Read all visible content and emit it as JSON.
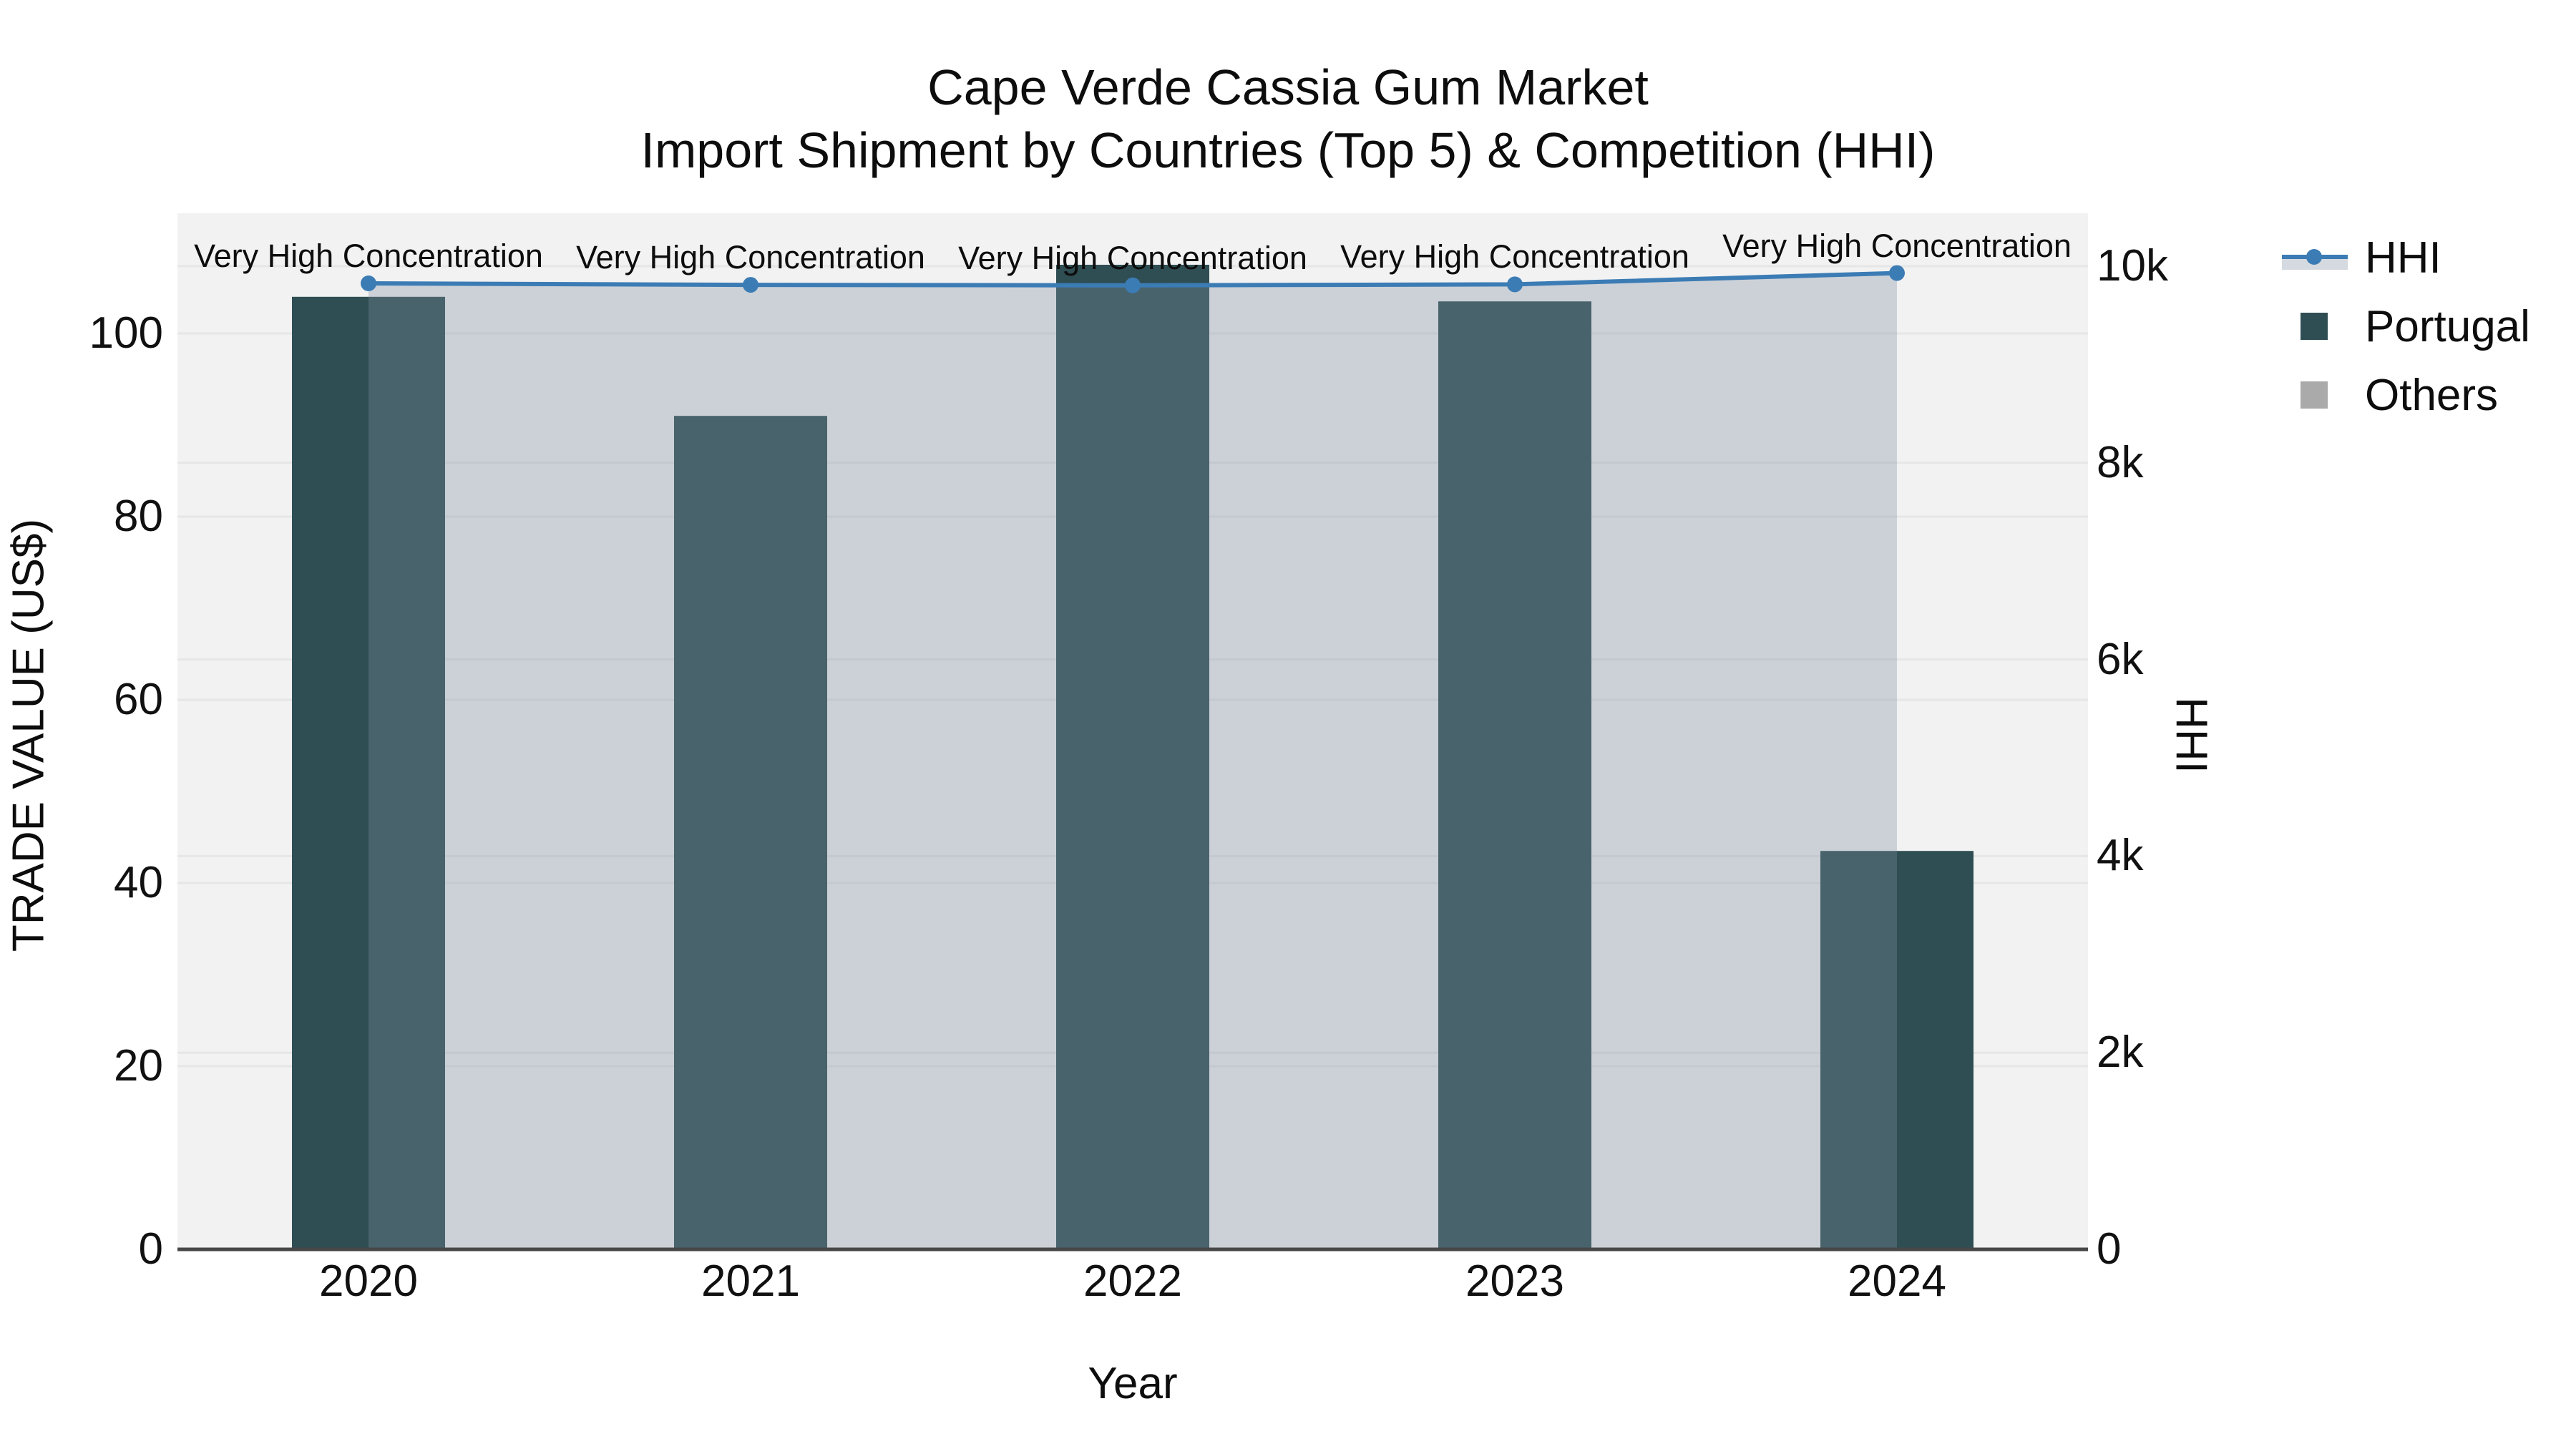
{
  "title": {
    "line1": "Cape Verde Cassia Gum Market",
    "line2": "Import Shipment by Countries (Top 5) & Competition (HHI)"
  },
  "axes": {
    "x": {
      "title": "Year"
    },
    "y_left": {
      "title": "TRADE VALUE (US$)"
    },
    "y_right": {
      "title": "HHI"
    }
  },
  "legend": {
    "items": [
      {
        "label": "HHI",
        "type": "line"
      },
      {
        "label": "Portugal",
        "type": "bar"
      },
      {
        "label": "Others",
        "type": "bar"
      }
    ]
  },
  "colors": {
    "portugal_bar": "#2F4E53",
    "others_bar": "#AAAAAA",
    "hhi_line": "#3C7CB5",
    "hhi_fill": "rgba(127,142,161,0.33)",
    "plot_bg": "#F2F2F2",
    "grid": "#E6E6E6",
    "axis_line": "#474747"
  },
  "chart_data": {
    "type": [
      "bar",
      "line"
    ],
    "title": "Cape Verde Cassia Gum Market — Import Shipment by Countries (Top 5) & Competition (HHI)",
    "categories": [
      "2020",
      "2021",
      "2022",
      "2023",
      "2024"
    ],
    "series": [
      {
        "name": "Portugal",
        "type": "bar",
        "axis": "left",
        "values": [
          104,
          91,
          107.5,
          103.5,
          43.5
        ]
      },
      {
        "name": "Others",
        "type": "bar",
        "axis": "left",
        "values": [
          0,
          0,
          0,
          0,
          0
        ]
      },
      {
        "name": "HHI",
        "type": "line",
        "axis": "right",
        "fill": "tozeroy",
        "marker": "circle",
        "values": [
          9825,
          9810,
          9805,
          9815,
          9930
        ]
      }
    ],
    "annotations": [
      "Very High Concentration",
      "Very High Concentration",
      "Very High Concentration",
      "Very High Concentration",
      "Very High Concentration"
    ],
    "xlabel": "Year",
    "ylabel_left": "TRADE VALUE (US$)",
    "ylabel_right": "HHI",
    "ylim_left": [
      0,
      113
    ],
    "ylim_right": [
      0,
      10540
    ],
    "yticks_left": {
      "values": [
        0,
        20,
        40,
        60,
        80,
        100
      ],
      "labels": [
        "0",
        "20",
        "40",
        "60",
        "80",
        "100"
      ]
    },
    "yticks_right": {
      "values": [
        0,
        2000,
        4000,
        6000,
        8000,
        10000
      ],
      "labels": [
        "0",
        "2k",
        "4k",
        "6k",
        "8k",
        "10k"
      ]
    },
    "grid": true,
    "legend_position": "right"
  }
}
